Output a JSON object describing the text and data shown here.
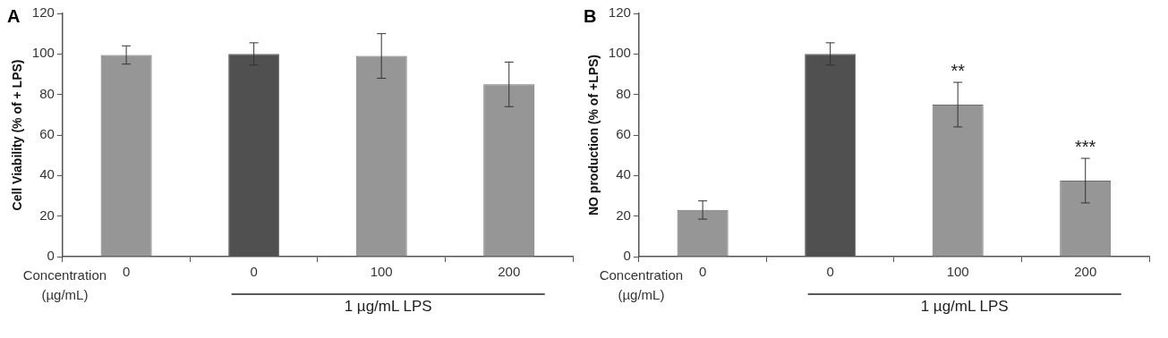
{
  "chart_data": [
    {
      "type": "bar",
      "title": "A",
      "xlabel": "Concentration (µg/mL)",
      "ylabel": "Cell Viability (% of + LPS)",
      "categories": [
        "0",
        "0",
        "100",
        "200"
      ],
      "values": [
        99.5,
        100,
        99,
        85
      ],
      "errors": [
        4.5,
        5.5,
        11,
        11
      ],
      "colors": [
        "#969696",
        "#505050",
        "#969696",
        "#969696"
      ],
      "ylim": [
        0,
        120
      ],
      "yticks": [
        0,
        20,
        40,
        60,
        80,
        100,
        120
      ],
      "annotations": [
        "1 µg/mL LPS"
      ]
    },
    {
      "type": "bar",
      "title": "B",
      "xlabel": "Concentration (µg/mL)",
      "ylabel": "NO production (% of +LPS)",
      "categories": [
        "0",
        "0",
        "100",
        "200"
      ],
      "values": [
        23,
        100,
        75,
        37.5
      ],
      "errors": [
        4.5,
        5.5,
        11,
        11
      ],
      "colors": [
        "#969696",
        "#505050",
        "#969696",
        "#969696"
      ],
      "ylim": [
        0,
        120
      ],
      "yticks": [
        0,
        20,
        40,
        60,
        80,
        100,
        120
      ],
      "annotations": [
        "1 µg/mL LPS",
        {
          "text": "**",
          "x": "100",
          "y": 86
        },
        {
          "text": "***",
          "x": "200",
          "y": 48.5
        }
      ]
    }
  ]
}
